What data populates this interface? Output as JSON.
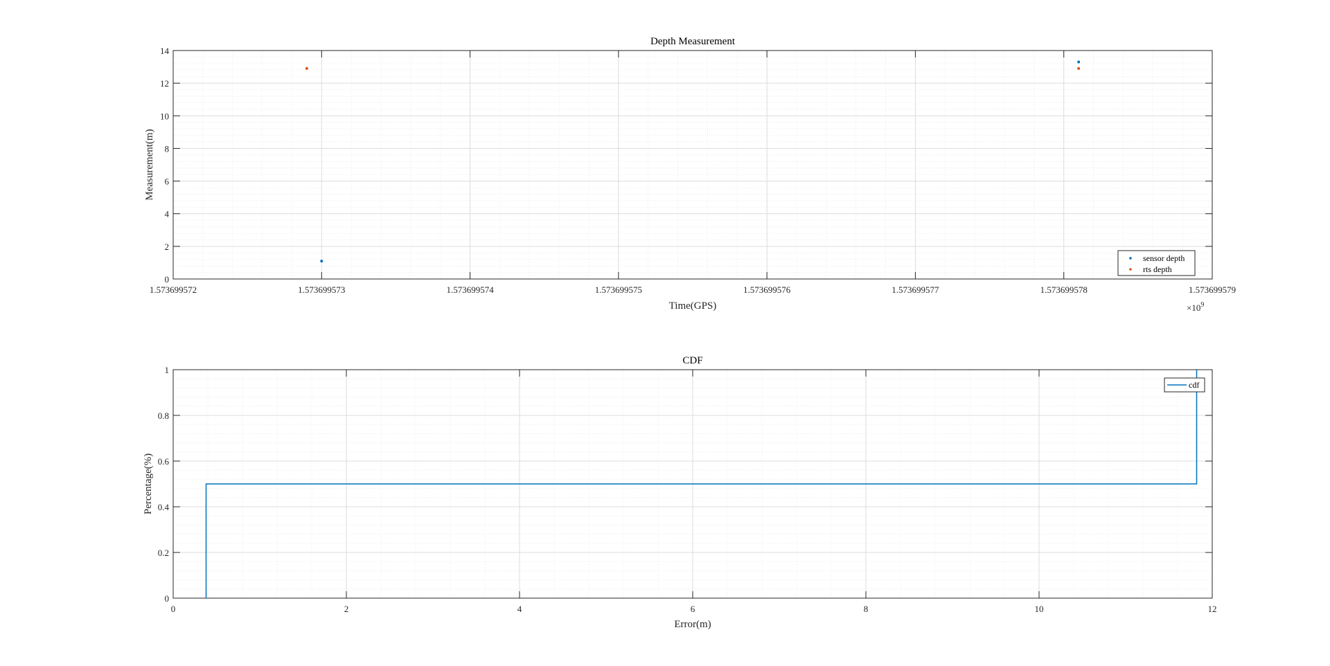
{
  "colors": {
    "series_blue": "#0072BD",
    "series_orange": "#D95319",
    "axis": "#262626",
    "grid_major": "#dcdcdc",
    "grid_minor": "#ececec"
  },
  "chart_data": [
    {
      "type": "scatter",
      "title": "Depth Measurement",
      "xlabel": "Time(GPS)",
      "ylabel": "Measurement(m)",
      "x_exponent_label": "×10",
      "x_exponent_power": "9",
      "xlim": [
        1.573699572,
        1.573699579
      ],
      "ylim": [
        0,
        14
      ],
      "xticks": [
        1.573699572,
        1.573699573,
        1.573699574,
        1.573699575,
        1.573699576,
        1.573699577,
        1.573699578,
        1.573699579
      ],
      "xtick_labels": [
        "1.573699572",
        "1.573699573",
        "1.573699574",
        "1.573699575",
        "1.573699576",
        "1.573699577",
        "1.573699578",
        "1.573699579"
      ],
      "yticks": [
        0,
        2,
        4,
        6,
        8,
        10,
        12,
        14
      ],
      "ytick_labels": [
        "0",
        "2",
        "4",
        "6",
        "8",
        "10",
        "12",
        "14"
      ],
      "grid": true,
      "minor_grid": true,
      "legend_position": "bottom-right",
      "series": [
        {
          "name": "sensor depth",
          "color": "#0072BD",
          "points": [
            {
              "x": 1.573699573,
              "y": 1.1
            },
            {
              "x": 1.5736995781,
              "y": 13.3
            }
          ]
        },
        {
          "name": "rts depth",
          "color": "#D95319",
          "points": [
            {
              "x": 1.5736995729,
              "y": 12.9
            },
            {
              "x": 1.5736995781,
              "y": 12.9
            }
          ]
        }
      ]
    },
    {
      "type": "line",
      "title": "CDF",
      "xlabel": "Error(m)",
      "ylabel": "Percentage(%)",
      "xlim": [
        0,
        12
      ],
      "ylim": [
        0,
        1
      ],
      "xticks": [
        0,
        2,
        4,
        6,
        8,
        10,
        12
      ],
      "xtick_labels": [
        "0",
        "2",
        "4",
        "6",
        "8",
        "10",
        "12"
      ],
      "yticks": [
        0,
        0.2,
        0.4,
        0.6,
        0.8,
        1
      ],
      "ytick_labels": [
        "0",
        "0.2",
        "0.4",
        "0.6",
        "0.8",
        "1"
      ],
      "grid": true,
      "minor_grid": true,
      "legend_position": "top-right",
      "series": [
        {
          "name": "cdf",
          "color": "#0072BD",
          "step": true,
          "x": [
            0.38,
            0.38,
            11.82,
            11.82
          ],
          "y": [
            0,
            0.5,
            0.5,
            1
          ]
        }
      ]
    }
  ]
}
